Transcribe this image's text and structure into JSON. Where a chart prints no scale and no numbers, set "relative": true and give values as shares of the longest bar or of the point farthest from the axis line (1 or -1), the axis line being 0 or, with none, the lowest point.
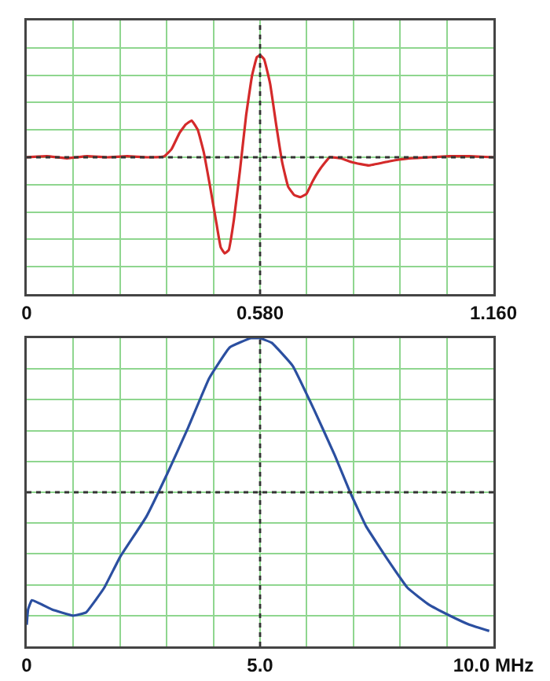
{
  "chart_data": [
    {
      "type": "line",
      "relative": true,
      "grid": true,
      "marker": "none",
      "line_style": "solid",
      "x": [
        0,
        0.05,
        0.1,
        0.15,
        0.2,
        0.25,
        0.3,
        0.342,
        0.36,
        0.38,
        0.395,
        0.41,
        0.425,
        0.44,
        0.455,
        0.47,
        0.482,
        0.492,
        0.502,
        0.515,
        0.53,
        0.545,
        0.56,
        0.572,
        0.58,
        0.59,
        0.605,
        0.62,
        0.635,
        0.65,
        0.665,
        0.68,
        0.695,
        0.71,
        0.73,
        0.753,
        0.78,
        0.81,
        0.85,
        0.9,
        0.95,
        1.0,
        1.05,
        1.1,
        1.16
      ],
      "series": [
        {
          "color": "#d42a2a",
          "values": [
            0,
            0.01,
            -0.01,
            0.01,
            0,
            0.01,
            0,
            0.01,
            0.08,
            0.24,
            0.32,
            0.36,
            0.27,
            0.05,
            -0.27,
            -0.61,
            -0.88,
            -0.94,
            -0.91,
            -0.61,
            -0.13,
            0.4,
            0.8,
            0.98,
            1,
            0.96,
            0.72,
            0.32,
            -0.05,
            -0.29,
            -0.37,
            -0.39,
            -0.36,
            -0.24,
            -0.11,
            0,
            -0.01,
            -0.05,
            -0.08,
            -0.04,
            -0.01,
            0,
            0.01,
            0.01,
            0
          ]
        }
      ],
      "xlim": [
        0,
        1.16
      ],
      "xticks": [
        0,
        {
          "value": 0.116,
          "label": null
        },
        {
          "value": 0.232,
          "label": null
        },
        {
          "value": 0.348,
          "label": null
        },
        {
          "value": 0.464,
          "label": null
        },
        {
          "value": 0.58,
          "label": "0.580"
        },
        {
          "value": 0.696,
          "label": null
        },
        {
          "value": 0.812,
          "label": null
        },
        {
          "value": 0.928,
          "label": null
        },
        {
          "value": 1.044,
          "label": null
        },
        {
          "value": 1.16,
          "label": "1.160"
        }
      ],
      "ref_lines": [
        {
          "axis": "y",
          "value": 0,
          "color": "#333333",
          "line_style": "dotted"
        },
        {
          "axis": "x",
          "value": 0.58,
          "color": "#333333",
          "line_style": "dotted"
        }
      ]
    },
    {
      "type": "line",
      "relative": true,
      "grid": true,
      "marker": "none",
      "line_style": "solid",
      "x": [
        0,
        0.03,
        0.11,
        0.54,
        0.99,
        1.27,
        1.66,
        2.0,
        2.56,
        3.01,
        3.46,
        3.91,
        4.35,
        4.8,
        4.99,
        5.25,
        5.7,
        6.15,
        6.6,
        6.93,
        7.27,
        7.72,
        8.16,
        8.61,
        9.06,
        9.49,
        9.91
      ],
      "series": [
        {
          "color": "#2b4fa0",
          "values": [
            0.07,
            0.12,
            0.15,
            0.12,
            0.1,
            0.11,
            0.19,
            0.29,
            0.42,
            0.56,
            0.71,
            0.87,
            0.97,
            1,
            1,
            0.985,
            0.91,
            0.77,
            0.62,
            0.5,
            0.39,
            0.285,
            0.19,
            0.136,
            0.1,
            0.07,
            0.05
          ]
        }
      ],
      "xlim": [
        0,
        10
      ],
      "xticks": [
        0,
        {
          "value": 1,
          "label": null
        },
        {
          "value": 2,
          "label": null
        },
        {
          "value": 3,
          "label": null
        },
        {
          "value": 4,
          "label": null
        },
        {
          "value": 5,
          "label": "5.0"
        },
        {
          "value": 6,
          "label": null
        },
        {
          "value": 7,
          "label": null
        },
        {
          "value": 8,
          "label": null
        },
        {
          "value": 9,
          "label": null
        },
        {
          "value": 10,
          "label": "10.0 MHz"
        }
      ],
      "ref_lines": [
        {
          "axis": "y",
          "value": 0.5,
          "color": "#333333",
          "line_style": "dotted"
        },
        {
          "axis": "x",
          "value": 5,
          "color": "#333333",
          "line_style": "dotted"
        }
      ]
    }
  ]
}
